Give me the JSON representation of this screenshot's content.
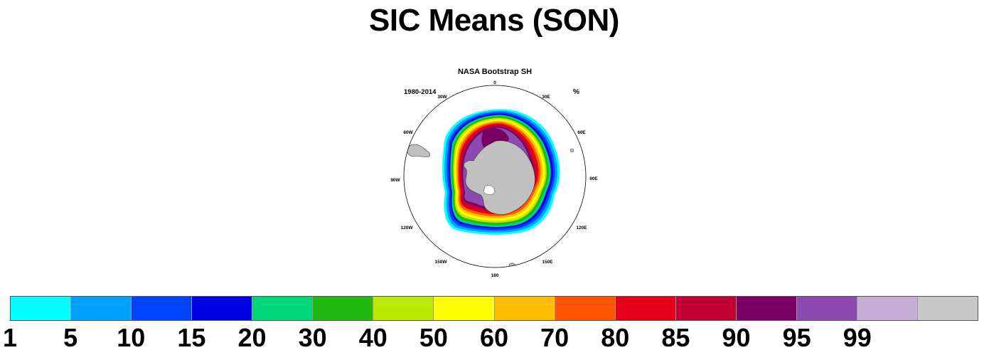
{
  "title": "SIC Means (SON)",
  "panel": {
    "title": "NASA Bootstrap SH",
    "left_annotation": "1980-2014",
    "right_annotation": "%"
  },
  "longitude_labels": [
    "0",
    "30E",
    "60E",
    "90E",
    "120E",
    "150E",
    "180",
    "150W",
    "120W",
    "90W",
    "60W",
    "30W"
  ],
  "chart_data": {
    "type": "heatmap",
    "projection": "south polar stereographic",
    "variable": "sea ice concentration",
    "units": "%",
    "colorbar": {
      "levels": [
        "1",
        "5",
        "10",
        "15",
        "20",
        "30",
        "40",
        "50",
        "60",
        "70",
        "80",
        "85",
        "90",
        "95",
        "99"
      ],
      "colors": [
        "#00ffff",
        "#00a0ff",
        "#0044ff",
        "#0000e0",
        "#00d67a",
        "#22b810",
        "#bde800",
        "#ffff00",
        "#ffbf00",
        "#ff5500",
        "#e60018",
        "#c20033",
        "#7a0066",
        "#8c4ab0",
        "#c6aed6",
        "#c8c8c8"
      ],
      "land_color": "#c0c0c0"
    }
  }
}
